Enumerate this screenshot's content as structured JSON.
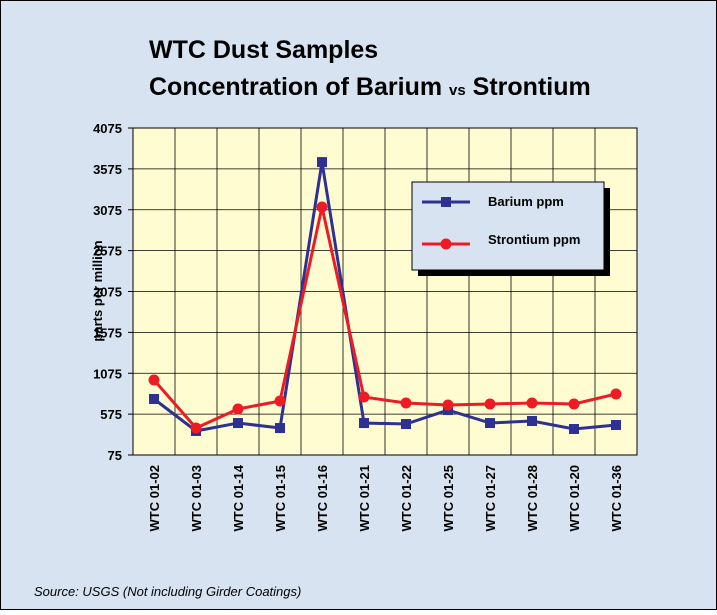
{
  "chart_data": {
    "type": "line",
    "title": {
      "line1": "WTC Dust Samples",
      "line2": [
        "Concentration of Barium",
        "vs",
        "Strontium"
      ]
    },
    "ylabel": "parts per million",
    "source": "Source:  USGS   (Not including Girder Coatings)",
    "categories": [
      "WTC 01-02",
      "WTC 01-03",
      "WTC 01-14",
      "WTC 01-15",
      "WTC 01-16",
      "WTC 01-21",
      "WTC 01-22",
      "WTC 01-25",
      "WTC 01-27",
      "WTC 01-28",
      "WTC 01-20",
      "WTC 01-36"
    ],
    "series": [
      {
        "name": "Barium ppm",
        "color": "#2e3192",
        "marker": "square",
        "values": [
          760,
          369,
          466,
          405,
          3658,
          466,
          454,
          625,
          466,
          491,
          393,
          442
        ]
      },
      {
        "name": "Strontium ppm",
        "color": "#ed1c24",
        "marker": "circle",
        "values": [
          992,
          405,
          638,
          735,
          3108,
          784,
          711,
          687,
          699,
          711,
          699,
          821
        ]
      }
    ],
    "ylim": [
      75,
      4075
    ],
    "yticks": [
      75,
      575,
      1075,
      1575,
      2075,
      2575,
      3075,
      3575,
      4075
    ],
    "grid": true,
    "legend": "upper right"
  }
}
